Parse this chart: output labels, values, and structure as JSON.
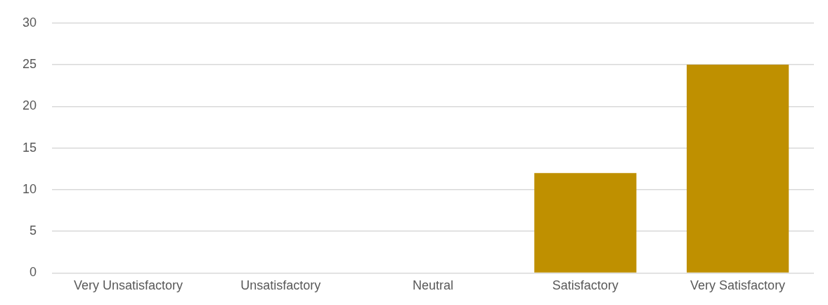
{
  "chart_data": {
    "type": "bar",
    "categories": [
      "Very Unsatisfactory",
      "Unsatisfactory",
      "Neutral",
      "Satisfactory",
      "Very Satisfactory"
    ],
    "values": [
      0,
      0,
      0,
      12,
      25
    ],
    "color": "#bf9000",
    "ylim": [
      0,
      30
    ],
    "yticks": [
      0,
      5,
      10,
      15,
      20,
      25,
      30
    ],
    "grid": "y",
    "legend": false
  }
}
